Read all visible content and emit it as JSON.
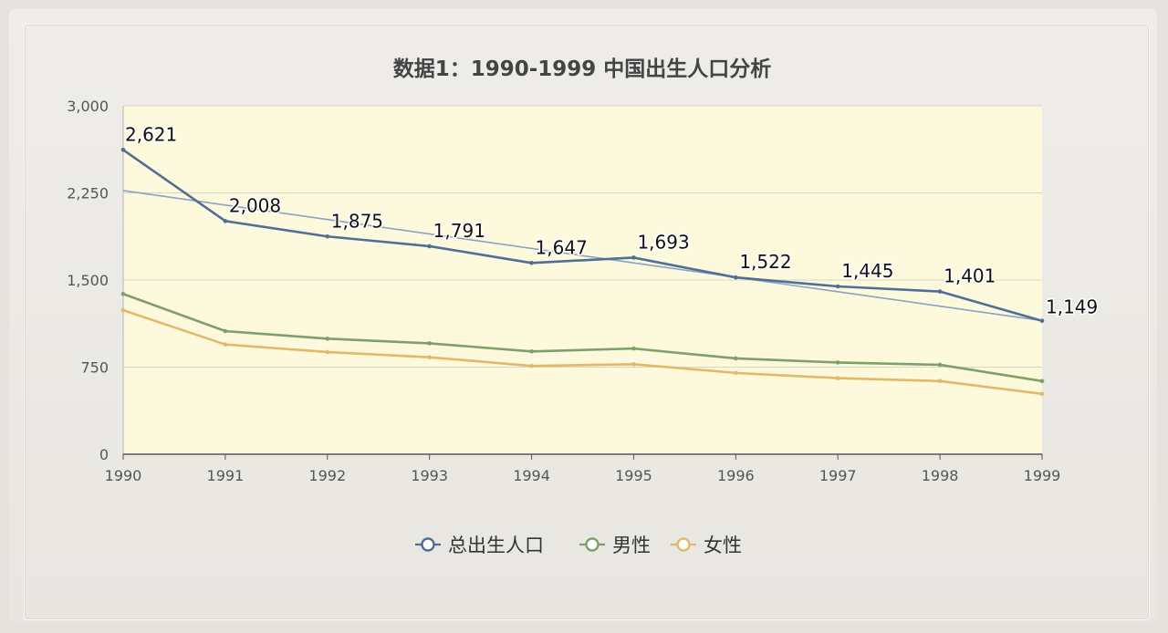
{
  "chart_data": {
    "type": "line",
    "title": "数据1：1990-1999 中国出生人口分析",
    "x": [
      "1990",
      "1991",
      "1992",
      "1993",
      "1994",
      "1995",
      "1996",
      "1997",
      "1998",
      "1999"
    ],
    "series": [
      {
        "name": "总出生人口",
        "values": [
          2621,
          2008,
          1875,
          1791,
          1647,
          1693,
          1522,
          1445,
          1401,
          1149
        ],
        "color": "#4f6f96",
        "labels": [
          "2,621",
          "2,008",
          "1,875",
          "1,791",
          "1,647",
          "1,693",
          "1,522",
          "1,445",
          "1,401",
          "1,149"
        ]
      },
      {
        "name": "男性",
        "values": [
          1380,
          1060,
          995,
          955,
          885,
          910,
          825,
          790,
          770,
          630
        ],
        "color": "#7fa06c"
      },
      {
        "name": "女性",
        "values": [
          1240,
          945,
          880,
          835,
          760,
          775,
          700,
          655,
          630,
          520
        ],
        "color": "#e2b96a"
      }
    ],
    "trendline": {
      "start": 2270,
      "end": 1150,
      "color": "#8aa3c4"
    },
    "yticks": [
      "0",
      "750",
      "1,500",
      "2,250",
      "3,000"
    ],
    "ylim": [
      0,
      3000
    ],
    "grid": true,
    "legend": "bottom-center",
    "plot_bg": "#fdf9dc"
  }
}
